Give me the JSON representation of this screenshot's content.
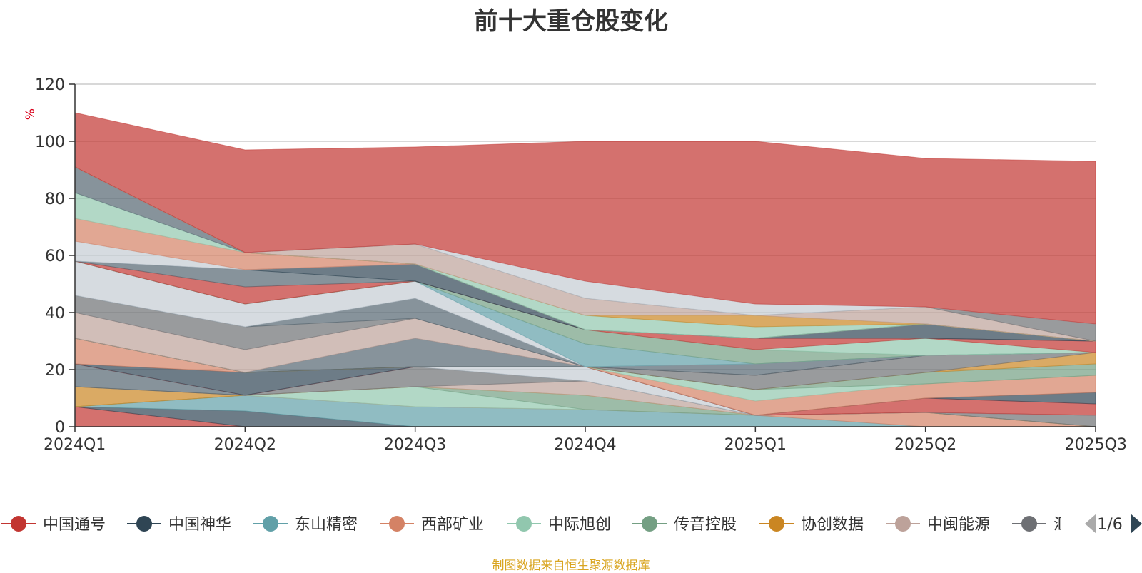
{
  "chart_data": {
    "type": "area",
    "stacked": true,
    "title": "前十大重仓股变化",
    "ylabel": "%",
    "ylim": [
      0,
      120
    ],
    "yticks": [
      0,
      20,
      40,
      60,
      80,
      100,
      120
    ],
    "grid": true,
    "categories": [
      "2024Q1",
      "2024Q2",
      "2024Q3",
      "2024Q4",
      "2025Q1",
      "2025Q2",
      "2025Q3"
    ],
    "series": [
      {
        "name": "中国通号",
        "color": "#c23531",
        "values": [
          7,
          0,
          0,
          0,
          0,
          0,
          0
        ]
      },
      {
        "name": "中国神华",
        "color": "#2f4554",
        "values": [
          0,
          5.5,
          0,
          0,
          0,
          0,
          0
        ]
      },
      {
        "name": "东山精密",
        "color": "#61a0a8",
        "values": [
          0,
          5.5,
          7,
          6,
          4,
          0,
          0
        ]
      },
      {
        "name": "西部矿业",
        "color": "#d48265",
        "values": [
          0,
          0,
          0,
          0,
          0,
          5,
          0
        ]
      },
      {
        "name": "中际旭创",
        "color": "#91c7ae",
        "values": [
          0,
          0,
          7,
          0,
          0,
          0,
          0
        ]
      },
      {
        "name": "传音控股",
        "color": "#749f83",
        "values": [
          0,
          0,
          0,
          5,
          0,
          0,
          0
        ]
      },
      {
        "name": "协创数据",
        "color": "#ca8622",
        "values": [
          7,
          0,
          0,
          0,
          0,
          0,
          0
        ]
      },
      {
        "name": "中闽能源",
        "color": "#bda29a",
        "values": [
          0,
          0,
          0,
          5,
          0,
          0,
          0
        ]
      },
      {
        "name": "",
        "color": "#6e7074",
        "values": [
          0,
          0,
          7,
          0,
          0,
          0,
          4
        ]
      },
      {
        "name": "",
        "color": "#546570",
        "values": [
          8,
          0,
          0,
          0,
          0,
          0,
          0
        ]
      },
      {
        "name": "",
        "color": "#c4ccd3",
        "values": [
          0,
          0,
          0,
          5,
          0,
          0,
          0
        ]
      },
      {
        "name": "",
        "color": "#c23531",
        "values": [
          0,
          0,
          0,
          0,
          0,
          5,
          4
        ]
      },
      {
        "name": "",
        "color": "#2f4554",
        "values": [
          0,
          8,
          0,
          0,
          0,
          0,
          4
        ]
      },
      {
        "name": "",
        "color": "#d48265",
        "values": [
          9,
          0,
          0,
          0,
          5,
          5,
          6
        ]
      },
      {
        "name": "",
        "color": "#91c7ae",
        "values": [
          0,
          0,
          0,
          0,
          4,
          0,
          0
        ]
      },
      {
        "name": "",
        "color": "#749f83",
        "values": [
          0,
          0,
          0,
          0,
          0,
          4,
          4
        ]
      },
      {
        "name": "",
        "color": "#ca8622",
        "values": [
          0,
          0,
          0,
          0,
          0,
          0,
          4
        ]
      },
      {
        "name": "",
        "color": "#6e7074",
        "values": [
          0,
          0,
          0,
          0,
          5,
          6,
          0
        ]
      },
      {
        "name": "",
        "color": "#546570",
        "values": [
          0,
          0,
          10,
          0,
          0,
          0,
          0
        ]
      },
      {
        "name": "",
        "color": "#bda29a",
        "values": [
          9,
          8,
          7,
          0,
          0,
          0,
          0
        ]
      },
      {
        "name": "",
        "color": "#6e7074",
        "values": [
          6,
          8,
          0,
          0,
          0,
          0,
          0
        ]
      },
      {
        "name": "",
        "color": "#546570",
        "values": [
          0,
          0,
          7,
          0,
          4,
          0,
          0
        ]
      },
      {
        "name": "",
        "color": "#c4ccd3",
        "values": [
          12,
          8,
          6,
          0,
          0,
          0,
          0
        ]
      },
      {
        "name": "",
        "color": "#61a0a8",
        "values": [
          0,
          0,
          0,
          8,
          0,
          0,
          0
        ]
      },
      {
        "name": "",
        "color": "#749f83",
        "values": [
          0,
          0,
          0,
          5,
          5,
          0,
          0
        ]
      },
      {
        "name": "",
        "color": "#91c7ae",
        "values": [
          0,
          0,
          0,
          0,
          0,
          6,
          0
        ]
      },
      {
        "name": "",
        "color": "#c23531",
        "values": [
          0,
          6,
          0,
          0,
          4,
          0,
          4
        ]
      },
      {
        "name": "",
        "color": "#546570",
        "values": [
          0,
          6,
          0,
          0,
          0,
          0,
          0
        ]
      },
      {
        "name": "",
        "color": "#2f4554",
        "values": [
          0,
          0,
          6,
          0,
          0,
          5,
          0
        ]
      },
      {
        "name": "",
        "color": "#c4ccd3",
        "values": [
          7,
          0,
          0,
          0,
          0,
          0,
          0
        ]
      },
      {
        "name": "",
        "color": "#d48265",
        "values": [
          8,
          6,
          0,
          0,
          0,
          0,
          0
        ]
      },
      {
        "name": "",
        "color": "#91c7ae",
        "values": [
          9,
          0,
          0,
          0,
          0,
          0,
          0
        ]
      },
      {
        "name": "",
        "color": "#546570",
        "values": [
          9,
          0,
          0,
          0,
          0,
          0,
          0
        ]
      },
      {
        "name": "",
        "color": "#91c7ae",
        "values": [
          0,
          0,
          0,
          5,
          4,
          0,
          0
        ]
      },
      {
        "name": "",
        "color": "#ca8622",
        "values": [
          0,
          0,
          0,
          0,
          4,
          0,
          0
        ]
      },
      {
        "name": "",
        "color": "#bda29a",
        "values": [
          0,
          0,
          7,
          6,
          0,
          6,
          0
        ]
      },
      {
        "name": "",
        "color": "#6e7074",
        "values": [
          0,
          0,
          0,
          0,
          0,
          0,
          6
        ]
      },
      {
        "name": "",
        "color": "#c4ccd3",
        "values": [
          0,
          0,
          0,
          6,
          4,
          0,
          0
        ]
      },
      {
        "name": "",
        "color": "#c23531",
        "values": [
          19,
          36,
          34,
          49,
          57,
          52,
          57
        ]
      }
    ]
  },
  "legend": {
    "visible_items": [
      "中国通号",
      "中国神华",
      "东山精密",
      "西部矿业",
      "中际旭创",
      "传音控股",
      "协创数据",
      "中闽能源",
      "汇"
    ],
    "page": "1/6"
  },
  "source_note": "制图数据来自恒生聚源数据库"
}
